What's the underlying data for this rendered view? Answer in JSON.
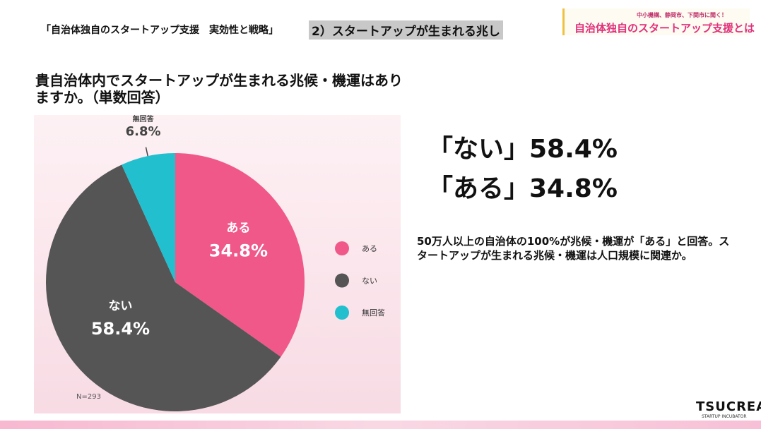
{
  "header": {
    "title": "「自治体独自のスタートアップ支援　実効性と戦略」",
    "section": "2）スタートアップが生まれる兆し"
  },
  "logo": {
    "tagline": "中小機構、静岡市、下関市に聞く！",
    "name": "自治体独自のスタートアップ支援とは"
  },
  "chart_data": {
    "type": "pie",
    "title": "貴自治体内でスタートアップが生まれる兆候・機運はありますか。（単数回答）",
    "categories": [
      "ある",
      "ない",
      "無回答"
    ],
    "values": [
      34.8,
      58.4,
      6.8
    ],
    "value_labels": [
      "34.8%",
      "58.4%",
      "6.8%"
    ],
    "colors": [
      "#f0588a",
      "#555555",
      "#22bfcf"
    ],
    "note": "N=293",
    "legend": "right"
  },
  "highlights": [
    "「ない」58.4%",
    "「ある」34.8%"
  ],
  "comment": "50万人以上の自治体の100%が兆候・機運が「ある」と回答。スタートアップが生まれる兆候・機運は人口規模に関連か。",
  "brand": {
    "name": "TSUCREA",
    "tagline": "STARTUP INCUBATOR"
  }
}
